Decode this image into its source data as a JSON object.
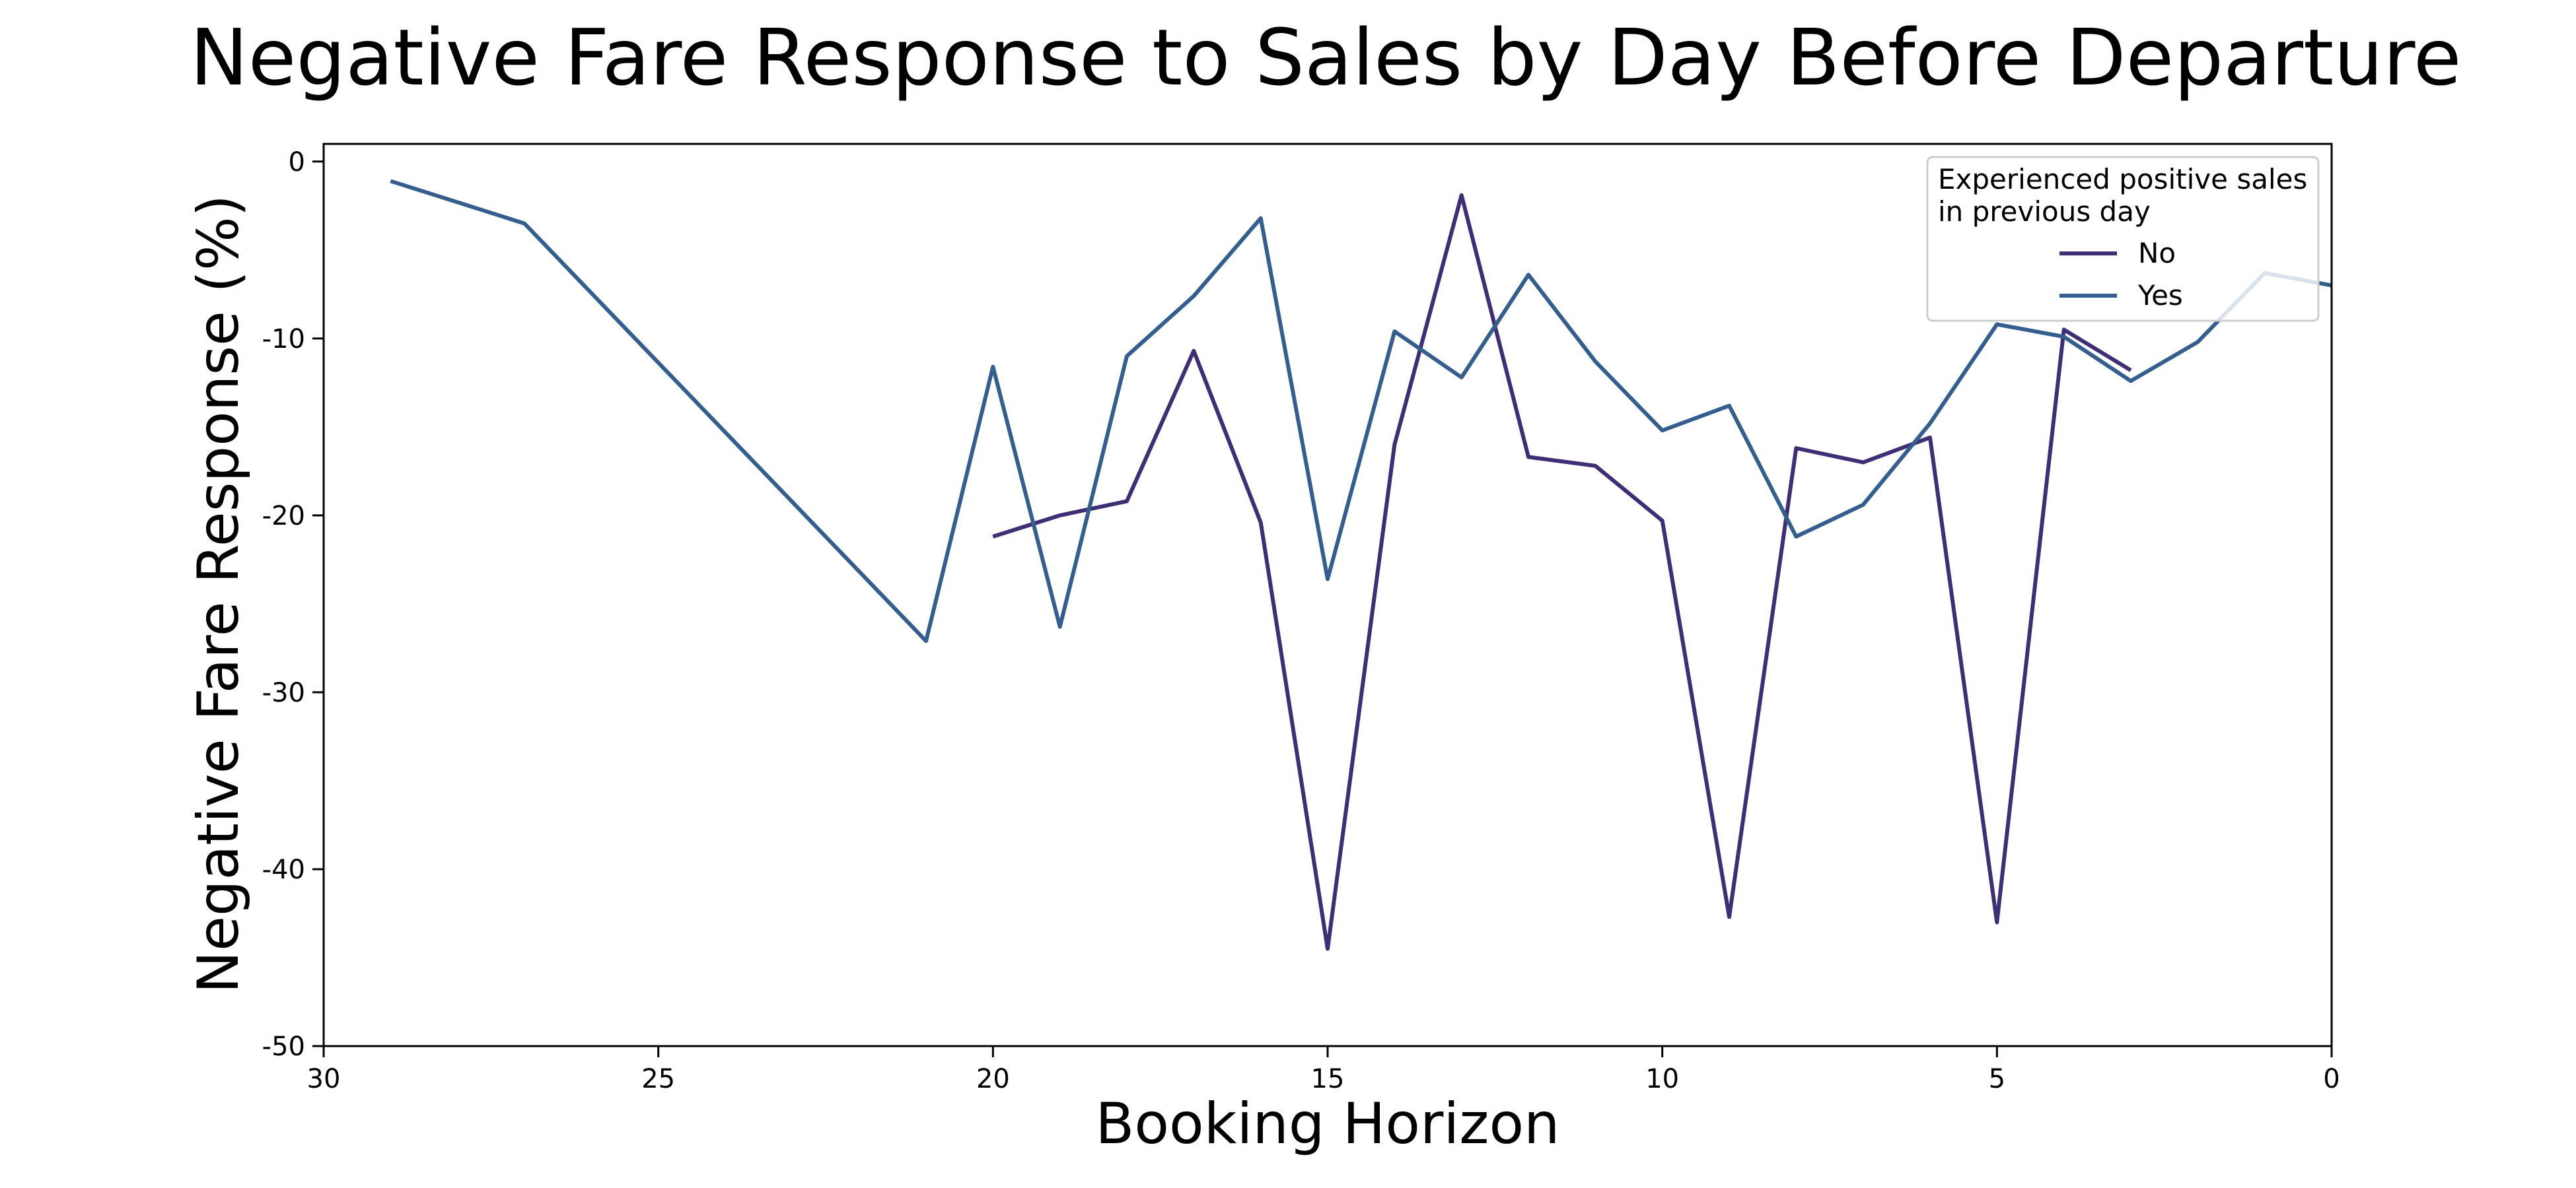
{
  "chart_data": {
    "type": "line",
    "title": "Negative Fare Response to Sales by Day Before Departure",
    "xlabel": "Booking Horizon",
    "ylabel": "Negative Fare Response (%)",
    "xlim": [
      30,
      0
    ],
    "ylim": [
      -50,
      1
    ],
    "x_ticks": [
      30,
      25,
      20,
      15,
      10,
      5,
      0
    ],
    "y_ticks": [
      0,
      -10,
      -20,
      -30,
      -40,
      -50
    ],
    "grid": false,
    "legend": {
      "title_lines": [
        "Experienced positive sales",
        "in previous day"
      ],
      "placement": "top-right"
    },
    "series": [
      {
        "name": "No",
        "color": "#3f2d76",
        "points": [
          [
            20,
            -21.2
          ],
          [
            19,
            -20.0
          ],
          [
            18,
            -19.2
          ],
          [
            17,
            -10.7
          ],
          [
            16,
            -20.4
          ],
          [
            15,
            -44.5
          ],
          [
            14,
            -16.0
          ],
          [
            13,
            -1.9
          ],
          [
            12,
            -16.7
          ],
          [
            11,
            -17.2
          ],
          [
            10,
            -20.3
          ],
          [
            9,
            -42.7
          ],
          [
            8,
            -16.2
          ],
          [
            7,
            -17.0
          ],
          [
            6,
            -15.6
          ],
          [
            5,
            -43.0
          ],
          [
            4,
            -9.5
          ],
          [
            3,
            -11.8
          ]
        ]
      },
      {
        "name": "Yes",
        "color": "#345e8f",
        "points": [
          [
            29,
            -1.1
          ],
          [
            27,
            -3.5
          ],
          [
            21,
            -27.1
          ],
          [
            20,
            -11.6
          ],
          [
            19,
            -26.3
          ],
          [
            18,
            -11.0
          ],
          [
            17,
            -7.6
          ],
          [
            16,
            -3.2
          ],
          [
            15,
            -23.6
          ],
          [
            14,
            -9.6
          ],
          [
            13,
            -12.2
          ],
          [
            12,
            -6.4
          ],
          [
            11,
            -11.3
          ],
          [
            10,
            -15.2
          ],
          [
            9,
            -13.8
          ],
          [
            8,
            -21.2
          ],
          [
            7,
            -19.4
          ],
          [
            6,
            -14.8
          ],
          [
            5,
            -9.2
          ],
          [
            4,
            -9.9
          ],
          [
            3,
            -12.4
          ],
          [
            2,
            -10.2
          ],
          [
            1,
            -6.3
          ],
          [
            0,
            -7.0
          ]
        ]
      }
    ]
  }
}
